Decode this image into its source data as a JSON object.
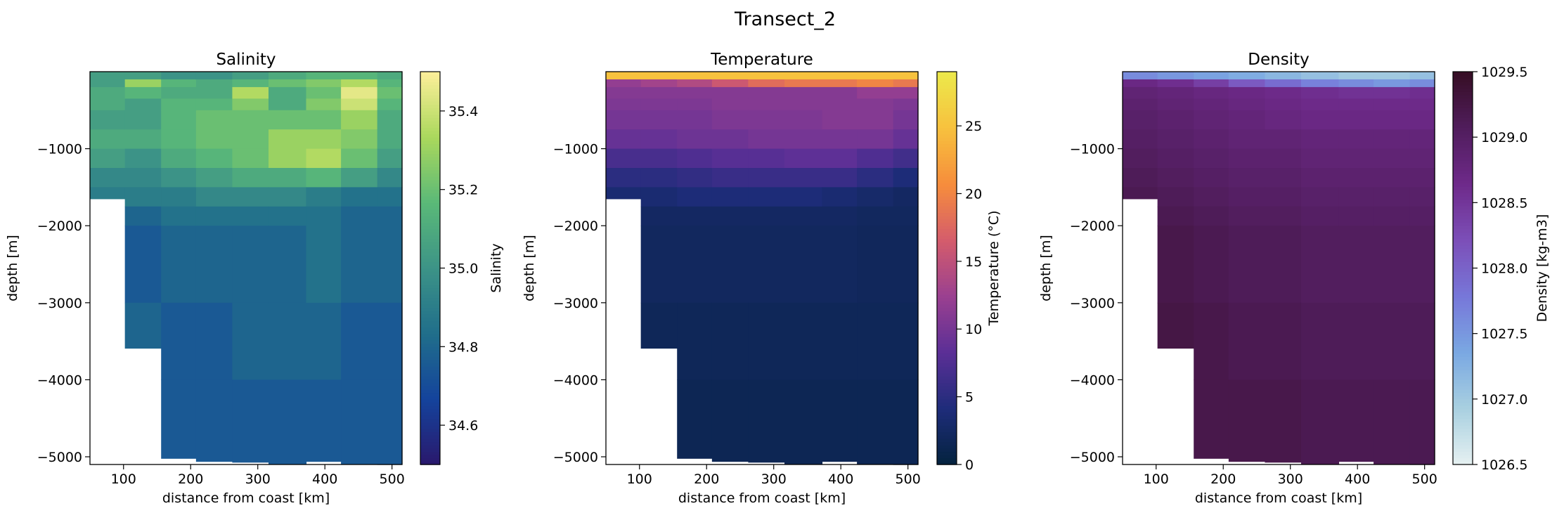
{
  "figure": {
    "title": "Transect_2"
  },
  "chart_data": [
    {
      "type": "heatmap",
      "title": "Salinity",
      "xlabel": "distance from coast [km]",
      "ylabel": "depth [m]",
      "xlim": [
        50,
        515
      ],
      "ylim": [
        -5100,
        0
      ],
      "xticks": [
        100,
        200,
        300,
        400,
        500
      ],
      "yticks": [
        -1000,
        -2000,
        -3000,
        -4000,
        -5000
      ],
      "colorbar": {
        "label": "Salinity",
        "range": [
          34.5,
          35.5
        ],
        "ticks": [
          "34.6",
          "34.8",
          "35.0",
          "35.2",
          "35.4"
        ],
        "tick_values": [
          34.6,
          34.8,
          35.0,
          35.2,
          35.4
        ],
        "colormap": "haline",
        "stops": [
          "#2a186c",
          "#14439c",
          "#206e8b",
          "#3c9387",
          "#5ab978",
          "#aad85c",
          "#fdef9a"
        ]
      },
      "stations_x": [
        50,
        102,
        156,
        208,
        262,
        316,
        372,
        424,
        478,
        515
      ],
      "bottom_depth": [
        -1650,
        -3590,
        -5020,
        -5060,
        -5070,
        -5090,
        -5060,
        -5090,
        -5100
      ],
      "depth_levels": [
        0,
        -100,
        -200,
        -350,
        -500,
        -750,
        -1000,
        -1250,
        -1500,
        -1750,
        -2000,
        -3000,
        -4000,
        -5100
      ],
      "grid": [
        [
          35.05,
          35.05,
          35.0,
          35.0,
          35.05,
          35.1,
          35.15,
          35.15,
          35.1
        ],
        [
          35.05,
          35.3,
          35.15,
          35.1,
          35.15,
          35.2,
          35.25,
          35.35,
          35.15
        ],
        [
          35.1,
          35.15,
          35.1,
          35.1,
          35.35,
          35.1,
          35.2,
          35.45,
          35.2
        ],
        [
          35.1,
          35.05,
          35.15,
          35.15,
          35.25,
          35.1,
          35.25,
          35.4,
          35.15
        ],
        [
          35.05,
          35.05,
          35.15,
          35.2,
          35.2,
          35.2,
          35.2,
          35.3,
          35.1
        ],
        [
          35.1,
          35.1,
          35.15,
          35.2,
          35.2,
          35.3,
          35.3,
          35.25,
          35.1
        ],
        [
          35.05,
          35.0,
          35.1,
          35.15,
          35.2,
          35.3,
          35.35,
          35.2,
          35.05
        ],
        [
          34.95,
          34.95,
          35.0,
          35.05,
          35.1,
          35.1,
          35.15,
          35.05,
          34.95
        ],
        [
          34.9,
          34.9,
          34.9,
          34.95,
          34.95,
          34.95,
          34.9,
          34.85,
          34.85
        ],
        [
          34.85,
          34.8,
          34.85,
          34.85,
          34.85,
          34.85,
          34.85,
          34.8,
          34.8
        ],
        [
          null,
          34.75,
          34.8,
          34.8,
          34.8,
          34.8,
          34.85,
          34.8,
          34.8
        ],
        [
          null,
          34.8,
          34.75,
          34.75,
          34.8,
          34.8,
          34.8,
          34.75,
          34.75
        ],
        [
          null,
          null,
          34.75,
          34.75,
          34.75,
          34.75,
          34.75,
          34.75,
          34.75
        ]
      ]
    },
    {
      "type": "heatmap",
      "title": "Temperature",
      "xlabel": "distance from coast [km]",
      "ylabel": "depth [m]",
      "xlim": [
        50,
        515
      ],
      "ylim": [
        -5100,
        0
      ],
      "xticks": [
        100,
        200,
        300,
        400,
        500
      ],
      "yticks": [
        -1000,
        -2000,
        -3000,
        -4000,
        -5000
      ],
      "colorbar": {
        "label": "Temperature (°C)",
        "range": [
          0,
          29
        ],
        "ticks": [
          "0",
          "5",
          "10",
          "15",
          "20",
          "25"
        ],
        "tick_values": [
          0,
          5,
          10,
          15,
          20,
          25
        ],
        "colormap": "thermal",
        "stops": [
          "#04233e",
          "#1e2c7a",
          "#5b2f96",
          "#9a4090",
          "#d45c6c",
          "#f68d3c",
          "#f7c13e",
          "#ece94b"
        ]
      },
      "stations_x": [
        50,
        102,
        156,
        208,
        262,
        316,
        372,
        424,
        478,
        515
      ],
      "bottom_depth": [
        -1650,
        -3590,
        -5020,
        -5060,
        -5070,
        -5090,
        -5060,
        -5090,
        -5100
      ],
      "depth_levels": [
        0,
        -100,
        -200,
        -350,
        -500,
        -750,
        -1000,
        -1250,
        -1500,
        -1750,
        -2000,
        -3000,
        -4000,
        -5100
      ],
      "grid": [
        [
          25,
          25,
          25,
          25,
          25,
          25,
          25,
          25,
          25
        ],
        [
          12,
          13,
          14,
          16,
          18,
          19,
          19,
          20,
          19
        ],
        [
          11,
          11,
          11,
          11,
          11,
          11,
          11,
          12,
          12
        ],
        [
          10.5,
          10.5,
          10.5,
          11,
          11,
          11,
          11,
          11,
          10.5
        ],
        [
          10,
          10,
          10,
          10.5,
          10.5,
          10.5,
          11,
          11,
          10
        ],
        [
          9,
          9,
          9.5,
          9.5,
          10,
          10,
          10,
          10,
          9
        ],
        [
          7,
          7,
          7.5,
          8,
          8,
          8.5,
          8.5,
          7.5,
          6.5
        ],
        [
          5,
          5,
          5.5,
          6,
          6,
          6,
          6,
          5,
          4
        ],
        [
          3.5,
          3.5,
          4,
          4,
          4,
          4,
          3.5,
          3,
          2.5
        ],
        [
          2.5,
          2.5,
          2.5,
          2.5,
          2.5,
          2.5,
          2.5,
          2.2,
          2.2
        ],
        [
          null,
          2.2,
          2.2,
          2.2,
          2.2,
          2.2,
          2.2,
          2.0,
          2.0
        ],
        [
          null,
          1.8,
          1.8,
          1.8,
          1.8,
          1.8,
          1.8,
          1.8,
          1.8
        ],
        [
          null,
          null,
          1.5,
          1.5,
          1.5,
          1.5,
          1.5,
          1.5,
          1.5
        ]
      ]
    },
    {
      "type": "heatmap",
      "title": "Density",
      "xlabel": "distance from coast [km]",
      "ylabel": "depth [m]",
      "xlim": [
        50,
        515
      ],
      "ylim": [
        -5100,
        0
      ],
      "xticks": [
        100,
        200,
        300,
        400,
        500
      ],
      "yticks": [
        -1000,
        -2000,
        -3000,
        -4000,
        -5000
      ],
      "colorbar": {
        "label": "Density [kg-m3]",
        "range": [
          1026.5,
          1029.5
        ],
        "ticks": [
          "1026.5",
          "1027.0",
          "1027.5",
          "1028.0",
          "1028.5",
          "1029.0",
          "1029.5"
        ],
        "tick_values": [
          1026.5,
          1027.0,
          1027.5,
          1028.0,
          1028.5,
          1029.0,
          1029.5
        ],
        "colormap": "dense",
        "stops": [
          "#e6f1f1",
          "#a9d0e0",
          "#7aa8e2",
          "#7777d9",
          "#7c4fb8",
          "#6e2a8a",
          "#501d5c",
          "#360e24"
        ]
      },
      "stations_x": [
        50,
        102,
        156,
        208,
        262,
        316,
        372,
        424,
        478,
        515
      ],
      "bottom_depth": [
        -1650,
        -3590,
        -5020,
        -5060,
        -5070,
        -5090,
        -5060,
        -5090,
        -5100
      ],
      "depth_levels": [
        0,
        -100,
        -200,
        -350,
        -500,
        -750,
        -1000,
        -1250,
        -1500,
        -1750,
        -2000,
        -3000,
        -4000,
        -5100
      ],
      "grid": [
        [
          1027.6,
          1027.5,
          1027.4,
          1027.3,
          1027.2,
          1027.1,
          1027.0,
          1027.0,
          1027.1
        ],
        [
          1028.7,
          1028.6,
          1028.4,
          1028.1,
          1027.9,
          1027.7,
          1027.6,
          1027.5,
          1027.6
        ],
        [
          1028.85,
          1028.8,
          1028.75,
          1028.7,
          1028.65,
          1028.6,
          1028.55,
          1028.55,
          1028.6
        ],
        [
          1028.9,
          1028.85,
          1028.8,
          1028.75,
          1028.7,
          1028.65,
          1028.65,
          1028.65,
          1028.65
        ],
        [
          1028.95,
          1028.9,
          1028.85,
          1028.8,
          1028.75,
          1028.7,
          1028.7,
          1028.7,
          1028.7
        ],
        [
          1029.0,
          1028.95,
          1028.9,
          1028.85,
          1028.85,
          1028.8,
          1028.8,
          1028.8,
          1028.8
        ],
        [
          1029.05,
          1029.0,
          1028.95,
          1028.9,
          1028.9,
          1028.85,
          1028.85,
          1028.85,
          1028.85
        ],
        [
          1029.1,
          1029.05,
          1029.0,
          1028.95,
          1028.95,
          1028.9,
          1028.9,
          1028.9,
          1028.9
        ],
        [
          1029.15,
          1029.1,
          1029.05,
          1029.0,
          1029.0,
          1028.95,
          1028.95,
          1028.95,
          1028.95
        ],
        [
          1029.2,
          1029.15,
          1029.1,
          1029.05,
          1029.05,
          1029.0,
          1029.0,
          1029.0,
          1029.0
        ],
        [
          null,
          1029.2,
          1029.15,
          1029.1,
          1029.1,
          1029.05,
          1029.05,
          1029.05,
          1029.05
        ],
        [
          null,
          1029.25,
          1029.2,
          1029.15,
          1029.15,
          1029.1,
          1029.1,
          1029.1,
          1029.1
        ],
        [
          null,
          null,
          1029.2,
          1029.2,
          1029.2,
          1029.15,
          1029.15,
          1029.15,
          1029.15
        ]
      ]
    }
  ]
}
